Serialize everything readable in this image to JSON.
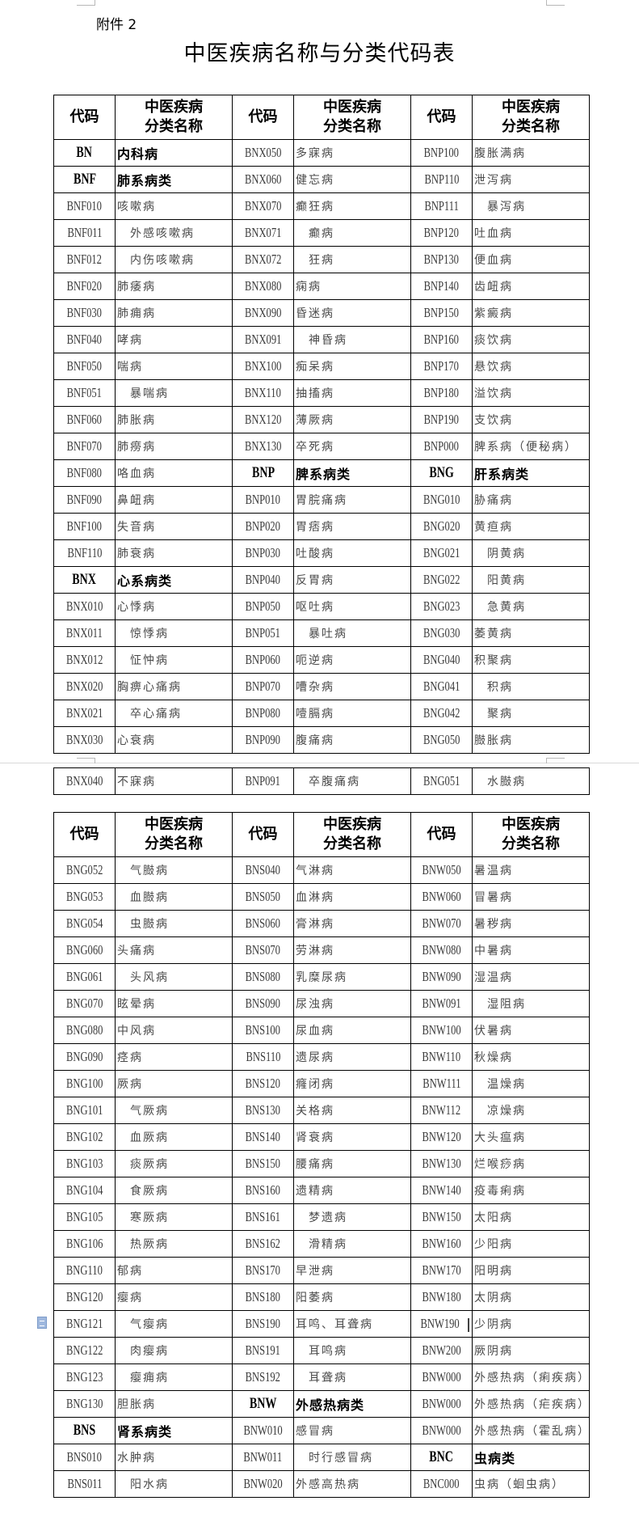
{
  "document": {
    "attachment_label": "附件 2",
    "title": "中医疾病名称与分类代码表"
  },
  "header": {
    "code": "代码",
    "name_line1": "中医疾病",
    "name_line2": "分类名称"
  },
  "table1": [
    [
      {
        "c": "BN",
        "n": "内科病",
        "cat": true
      },
      {
        "c": "BNX050",
        "n": "多寐病"
      },
      {
        "c": "BNP100",
        "n": "腹胀满病"
      }
    ],
    [
      {
        "c": "BNF",
        "n": "肺系病类",
        "cat": true
      },
      {
        "c": "BNX060",
        "n": "健忘病"
      },
      {
        "c": "BNP110",
        "n": "泄泻病"
      }
    ],
    [
      {
        "c": "BNF010",
        "n": "咳嗽病"
      },
      {
        "c": "BNX070",
        "n": "癫狂病"
      },
      {
        "c": "BNP111",
        "n": "暴泻病",
        "sub": true
      }
    ],
    [
      {
        "c": "BNF011",
        "n": "外感咳嗽病",
        "sub": true
      },
      {
        "c": "BNX071",
        "n": "癫病",
        "sub": true
      },
      {
        "c": "BNP120",
        "n": "吐血病"
      }
    ],
    [
      {
        "c": "BNF012",
        "n": "内伤咳嗽病",
        "sub": true
      },
      {
        "c": "BNX072",
        "n": "狂病",
        "sub": true
      },
      {
        "c": "BNP130",
        "n": "便血病"
      }
    ],
    [
      {
        "c": "BNF020",
        "n": "肺痿病"
      },
      {
        "c": "BNX080",
        "n": "痫病"
      },
      {
        "c": "BNP140",
        "n": "齿衄病"
      }
    ],
    [
      {
        "c": "BNF030",
        "n": "肺痈病"
      },
      {
        "c": "BNX090",
        "n": "昏迷病"
      },
      {
        "c": "BNP150",
        "n": "紫癜病"
      }
    ],
    [
      {
        "c": "BNF040",
        "n": "哮病"
      },
      {
        "c": "BNX091",
        "n": "神昏病",
        "sub": true
      },
      {
        "c": "BNP160",
        "n": "痰饮病"
      }
    ],
    [
      {
        "c": "BNF050",
        "n": "喘病"
      },
      {
        "c": "BNX100",
        "n": "痴呆病"
      },
      {
        "c": "BNP170",
        "n": "悬饮病"
      }
    ],
    [
      {
        "c": "BNF051",
        "n": "暴喘病",
        "sub": true
      },
      {
        "c": "BNX110",
        "n": "抽搐病"
      },
      {
        "c": "BNP180",
        "n": "溢饮病"
      }
    ],
    [
      {
        "c": "BNF060",
        "n": "肺胀病"
      },
      {
        "c": "BNX120",
        "n": "薄厥病"
      },
      {
        "c": "BNP190",
        "n": "支饮病"
      }
    ],
    [
      {
        "c": "BNF070",
        "n": "肺痨病"
      },
      {
        "c": "BNX130",
        "n": "卒死病"
      },
      {
        "c": "BNP000",
        "n": "脾系病（便秘病）"
      }
    ],
    [
      {
        "c": "BNF080",
        "n": "咯血病"
      },
      {
        "c": "BNP",
        "n": "脾系病类",
        "cat": true
      },
      {
        "c": "BNG",
        "n": "肝系病类",
        "cat": true
      }
    ],
    [
      {
        "c": "BNF090",
        "n": "鼻衄病"
      },
      {
        "c": "BNP010",
        "n": "胃脘痛病"
      },
      {
        "c": "BNG010",
        "n": "胁痛病"
      }
    ],
    [
      {
        "c": "BNF100",
        "n": "失音病"
      },
      {
        "c": "BNP020",
        "n": "胃痞病"
      },
      {
        "c": "BNG020",
        "n": "黄疸病"
      }
    ],
    [
      {
        "c": "BNF110",
        "n": "肺衰病"
      },
      {
        "c": "BNP030",
        "n": "吐酸病"
      },
      {
        "c": "BNG021",
        "n": "阴黄病",
        "sub": true
      }
    ],
    [
      {
        "c": "BNX",
        "n": "心系病类",
        "cat": true
      },
      {
        "c": "BNP040",
        "n": "反胃病"
      },
      {
        "c": "BNG022",
        "n": "阳黄病",
        "sub": true
      }
    ],
    [
      {
        "c": "BNX010",
        "n": "心悸病"
      },
      {
        "c": "BNP050",
        "n": "呕吐病"
      },
      {
        "c": "BNG023",
        "n": "急黄病",
        "sub": true
      }
    ],
    [
      {
        "c": "BNX011",
        "n": "惊悸病",
        "sub": true
      },
      {
        "c": "BNP051",
        "n": "暴吐病",
        "sub": true
      },
      {
        "c": "BNG030",
        "n": "萎黄病"
      }
    ],
    [
      {
        "c": "BNX012",
        "n": "怔忡病",
        "sub": true
      },
      {
        "c": "BNP060",
        "n": "呃逆病"
      },
      {
        "c": "BNG040",
        "n": "积聚病"
      }
    ],
    [
      {
        "c": "BNX020",
        "n": "胸痹心痛病"
      },
      {
        "c": "BNP070",
        "n": "嘈杂病"
      },
      {
        "c": "BNG041",
        "n": "积病",
        "sub": true
      }
    ],
    [
      {
        "c": "BNX021",
        "n": "卒心痛病",
        "sub": true
      },
      {
        "c": "BNP080",
        "n": "噎膈病"
      },
      {
        "c": "BNG042",
        "n": "聚病",
        "sub": true
      }
    ],
    [
      {
        "c": "BNX030",
        "n": "心衰病"
      },
      {
        "c": "BNP090",
        "n": "腹痛病"
      },
      {
        "c": "BNG050",
        "n": "臌胀病"
      }
    ]
  ],
  "table1_continued": [
    [
      {
        "c": "BNX040",
        "n": "不寐病"
      },
      {
        "c": "BNP091",
        "n": "卒腹痛病",
        "sub": true
      },
      {
        "c": "BNG051",
        "n": "水臌病",
        "sub": true
      }
    ]
  ],
  "table2": [
    [
      {
        "c": "BNG052",
        "n": "气臌病",
        "sub": true
      },
      {
        "c": "BNS040",
        "n": "气淋病"
      },
      {
        "c": "BNW050",
        "n": "暑温病"
      }
    ],
    [
      {
        "c": "BNG053",
        "n": "血臌病",
        "sub": true
      },
      {
        "c": "BNS050",
        "n": "血淋病"
      },
      {
        "c": "BNW060",
        "n": "冒暑病"
      }
    ],
    [
      {
        "c": "BNG054",
        "n": "虫臌病",
        "sub": true
      },
      {
        "c": "BNS060",
        "n": "膏淋病"
      },
      {
        "c": "BNW070",
        "n": "暑秽病"
      }
    ],
    [
      {
        "c": "BNG060",
        "n": "头痛病"
      },
      {
        "c": "BNS070",
        "n": "劳淋病"
      },
      {
        "c": "BNW080",
        "n": "中暑病"
      }
    ],
    [
      {
        "c": "BNG061",
        "n": "头风病",
        "sub": true
      },
      {
        "c": "BNS080",
        "n": "乳糜尿病"
      },
      {
        "c": "BNW090",
        "n": "湿温病"
      }
    ],
    [
      {
        "c": "BNG070",
        "n": "眩晕病"
      },
      {
        "c": "BNS090",
        "n": "尿浊病"
      },
      {
        "c": "BNW091",
        "n": "湿阻病",
        "sub": true
      }
    ],
    [
      {
        "c": "BNG080",
        "n": "中风病"
      },
      {
        "c": "BNS100",
        "n": "尿血病"
      },
      {
        "c": "BNW100",
        "n": "伏暑病"
      }
    ],
    [
      {
        "c": "BNG090",
        "n": "痉病"
      },
      {
        "c": "BNS110",
        "n": "遗尿病"
      },
      {
        "c": "BNW110",
        "n": "秋燥病"
      }
    ],
    [
      {
        "c": "BNG100",
        "n": "厥病"
      },
      {
        "c": "BNS120",
        "n": "癃闭病"
      },
      {
        "c": "BNW111",
        "n": "温燥病",
        "sub": true
      }
    ],
    [
      {
        "c": "BNG101",
        "n": "气厥病",
        "sub": true
      },
      {
        "c": "BNS130",
        "n": "关格病"
      },
      {
        "c": "BNW112",
        "n": "凉燥病",
        "sub": true
      }
    ],
    [
      {
        "c": "BNG102",
        "n": "血厥病",
        "sub": true
      },
      {
        "c": "BNS140",
        "n": "肾衰病"
      },
      {
        "c": "BNW120",
        "n": "大头瘟病"
      }
    ],
    [
      {
        "c": "BNG103",
        "n": "痰厥病",
        "sub": true
      },
      {
        "c": "BNS150",
        "n": "腰痛病"
      },
      {
        "c": "BNW130",
        "n": "烂喉痧病"
      }
    ],
    [
      {
        "c": "BNG104",
        "n": "食厥病",
        "sub": true
      },
      {
        "c": "BNS160",
        "n": "遗精病"
      },
      {
        "c": "BNW140",
        "n": "疫毒痢病"
      }
    ],
    [
      {
        "c": "BNG105",
        "n": "寒厥病",
        "sub": true
      },
      {
        "c": "BNS161",
        "n": "梦遗病",
        "sub": true
      },
      {
        "c": "BNW150",
        "n": "太阳病"
      }
    ],
    [
      {
        "c": "BNG106",
        "n": "热厥病",
        "sub": true
      },
      {
        "c": "BNS162",
        "n": "滑精病",
        "sub": true
      },
      {
        "c": "BNW160",
        "n": "少阳病"
      }
    ],
    [
      {
        "c": "BNG110",
        "n": "郁病"
      },
      {
        "c": "BNS170",
        "n": "早泄病"
      },
      {
        "c": "BNW170",
        "n": "阳明病"
      }
    ],
    [
      {
        "c": "BNG120",
        "n": "瘿病"
      },
      {
        "c": "BNS180",
        "n": "阳萎病"
      },
      {
        "c": "BNW180",
        "n": "太阴病"
      }
    ],
    [
      {
        "c": "BNG121",
        "n": "气瘿病",
        "sub": true
      },
      {
        "c": "BNS190",
        "n": "耳鸣、耳聋病"
      },
      {
        "c": "BNW190",
        "n": "少阴病",
        "cursor": true
      }
    ],
    [
      {
        "c": "BNG122",
        "n": "肉瘿病",
        "sub": true
      },
      {
        "c": "BNS191",
        "n": "耳鸣病",
        "sub": true
      },
      {
        "c": "BNW200",
        "n": "厥阴病"
      }
    ],
    [
      {
        "c": "BNG123",
        "n": "瘿痈病",
        "sub": true
      },
      {
        "c": "BNS192",
        "n": "耳聋病",
        "sub": true
      },
      {
        "c": "BNW000",
        "n": "外感热病（痢疾病）"
      }
    ],
    [
      {
        "c": "BNG130",
        "n": "胆胀病"
      },
      {
        "c": "BNW",
        "n": "外感热病类",
        "cat": true
      },
      {
        "c": "BNW000",
        "n": "外感热病（疟疾病）"
      }
    ],
    [
      {
        "c": "BNS",
        "n": "肾系病类",
        "cat": true
      },
      {
        "c": "BNW010",
        "n": "感冒病"
      },
      {
        "c": "BNW000",
        "n": "外感热病（霍乱病）"
      }
    ],
    [
      {
        "c": "BNS010",
        "n": "水肿病"
      },
      {
        "c": "BNW011",
        "n": "时行感冒病",
        "sub": true
      },
      {
        "c": "BNC",
        "n": "虫病类",
        "cat": true
      }
    ],
    [
      {
        "c": "BNS011",
        "n": "阳水病",
        "sub": true
      },
      {
        "c": "BNW020",
        "n": "外感高热病"
      },
      {
        "c": "BNC000",
        "n": "虫病（蛔虫病）"
      }
    ]
  ]
}
